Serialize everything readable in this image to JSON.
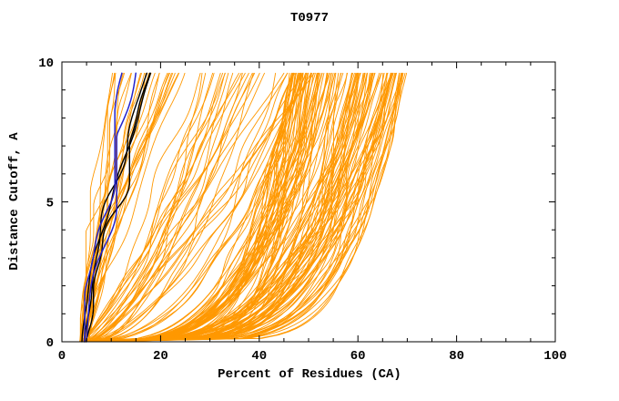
{
  "chart_data": {
    "type": "line",
    "title": "T0977",
    "xlabel": "Percent of Residues (CA)",
    "ylabel": "Distance Cutoff, A",
    "xlim": [
      0,
      100
    ],
    "ylim": [
      0,
      10
    ],
    "xticks": [
      0,
      20,
      40,
      60,
      80,
      100
    ],
    "yticks": [
      0,
      5,
      10
    ],
    "x_minor_step": 5,
    "y_minor_step": 1,
    "grid": false,
    "legend": "none",
    "curve_top_y": 9.6,
    "description": "Ensemble of per-model accuracy curves for CASP target T0977: percent of CA residues fit under each distance cutoff. Orange = predicted models, black and blue = highlighted reference/best models hugging the left side.",
    "series_groups": [
      {
        "name": "models-orange-left",
        "color": "#ff9800",
        "count": 26,
        "stroke_width": 0.9,
        "x_start": [
          3.5,
          5.5
        ],
        "x_top": [
          10,
          25
        ],
        "shape_exp": [
          0.9,
          1.6
        ]
      },
      {
        "name": "models-orange-middle",
        "color": "#ff9800",
        "count": 34,
        "stroke_width": 0.9,
        "x_start": [
          3.5,
          6.0
        ],
        "x_top": [
          28,
          52
        ],
        "shape_exp": [
          0.35,
          0.9
        ]
      },
      {
        "name": "models-orange-bulk",
        "color": "#ff9800",
        "count": 120,
        "stroke_width": 0.9,
        "x_start": [
          3.5,
          6.0
        ],
        "x_top": [
          46,
          70
        ],
        "shape_exp": [
          0.13,
          0.32
        ]
      },
      {
        "name": "models-black",
        "color": "#000000",
        "count": 3,
        "stroke_width": 1.4,
        "x_start": [
          4.0,
          5.0
        ],
        "x_top": [
          13,
          22
        ],
        "shape_exp": [
          1.0,
          1.5
        ]
      },
      {
        "name": "models-blue",
        "color": "#2222cc",
        "count": 2,
        "stroke_width": 1.5,
        "x_start": [
          4.0,
          5.0
        ],
        "x_top": [
          12,
          19
        ],
        "shape_exp": [
          1.1,
          1.5
        ]
      }
    ],
    "axis_color": "#000000",
    "background_color": "#ffffff"
  },
  "render": {
    "seed": 977,
    "samples": 80,
    "jitter": 1.7
  }
}
